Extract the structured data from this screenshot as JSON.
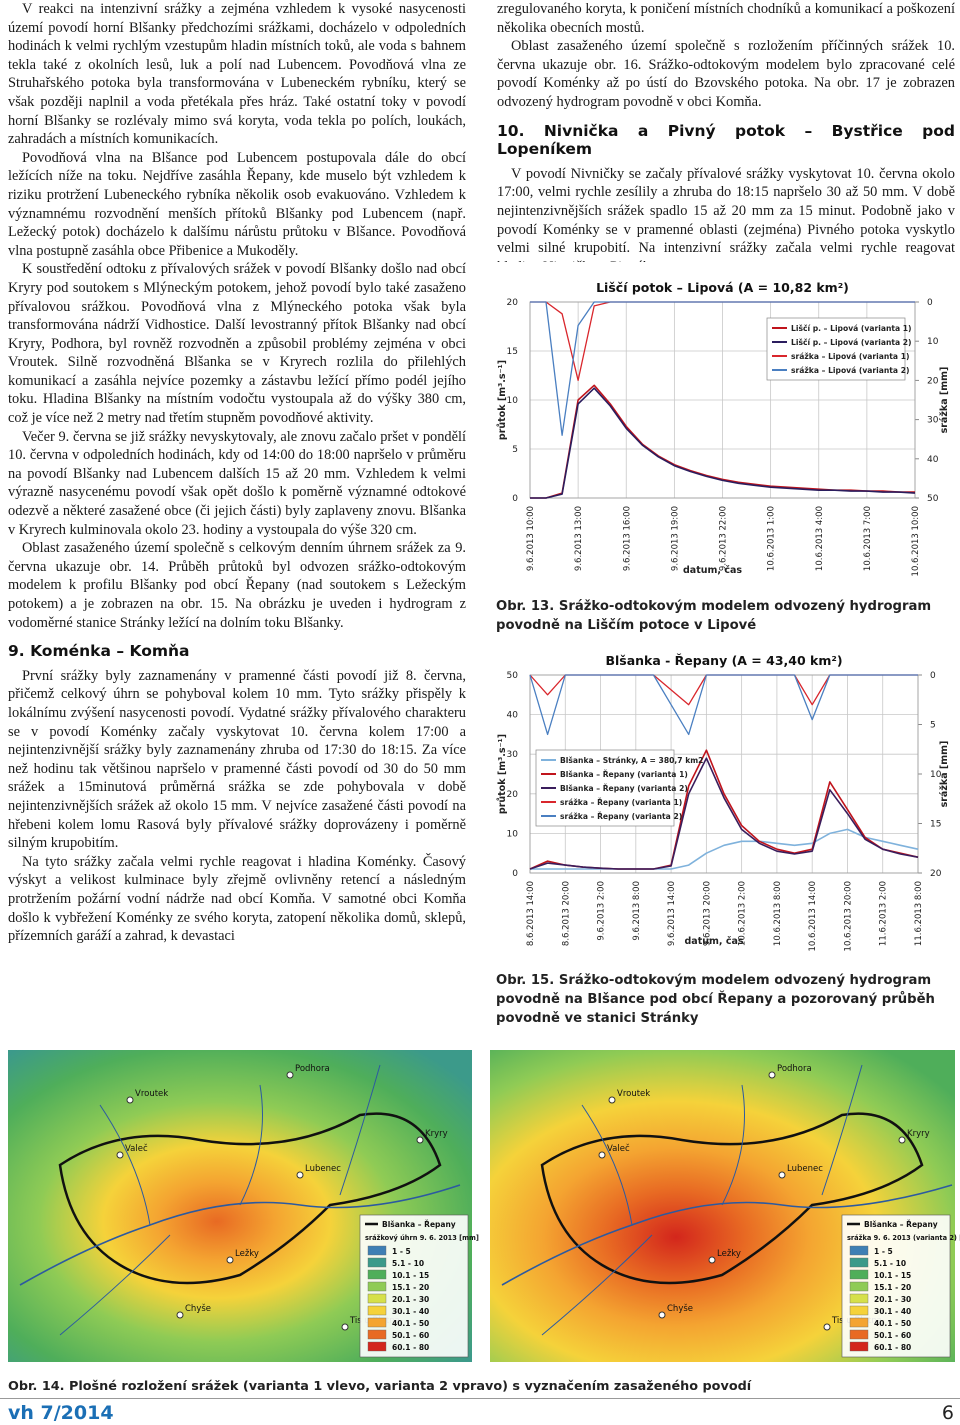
{
  "left_column": {
    "paragraphs_1": [
      "V reakci na intenzivní srážky a zejména vzhledem k vysoké nasycenosti území povodí horní Blšanky předchozími srážkami, docházelo v odpoledních hodinách k velmi rychlým vzestupům hladin místních toků, ale voda s bahnem tekla také z okolních lesů, luk a polí nad Lubencem. Povodňová vlna ze Struhařského potoka byla transformována v Lubeneckém rybníku, který se však později naplnil a voda přetékala přes hráz. Také ostatní toky v povodí horní Blšanky se rozlévaly mimo svá koryta, voda tekla po polích, loukách, zahradách a místních komunikacích.",
      "Povodňová vlna na Blšance pod Lubencem postupovala dále do obcí ležících níže na toku. Nejdříve zasáhla Řepany, kde muselo být vzhledem k riziku protržení Lubeneckého rybníka několik osob evakuováno. Vzhledem k významnému rozvodnění menších přítoků Blšanky pod Lubencem (např. Ležecký potok) docházelo k dalšímu nárůstu průtoku v Blšance. Povodňová vlna postupně zasáhla obce Přibenice a Mukoděly.",
      "K soustředění odtoku z přívalových srážek v povodí Blšanky došlo nad obcí Kryry pod soutokem s Mlýneckým potokem, jehož povodí bylo také zasaženo přívalovou srážkou. Povodňová vlna z Mlýneckého potoka však byla transformována nádrží Vidhostice. Další levostranný přítok Blšanky nad obcí Kryry, Podhora, byl rovněž rozvodněn a způsobil problémy zejména v obci Vroutek. Silně rozvodněná Blšanka se v Kryrech rozlila do přilehlých komunikací a zasáhla nejvíce pozemky a zástavbu ležící přímo podél jejího toku. Hladina Blšanky na místním vodočtu vystoupala až do výšky 380 cm, což je více než 2 metry nad třetím stupněm povodňové aktivity.",
      "Večer 9. června se již srážky nevyskytovaly, ale znovu začalo pršet v pondělí 10. června v odpoledních hodinách, kdy od 14:00 do 18:00 napršelo v průměru na povodí Blšanky nad Lubencem dalších 15 až 20 mm. Vzhledem k velmi výrazně nasycenému povodí však opět došlo k poměrně významné odtokové odezvě a některé zasažené obce (či jejich části) byly zaplaveny znovu. Blšanka v Kryrech kulminovala okolo 23. hodiny a vystoupala do výše 320 cm.",
      "Oblast zasaženého území společně s celkovým denním úhrnem srážek za 9. června ukazuje obr. 14. Průběh průtoků byl odvozen srážko-odtokovým modelem k profilu Blšanky pod obcí Řepany (nad soutokem s Ležeckým potokem) a je zobrazen na obr. 15. Na obrázku je uveden i hydrogram z vodoměrné stanice Stránky ležící na dolním toku Blšanky."
    ],
    "heading": "9. Koménka – Komňa",
    "paragraphs_2": [
      "První srážky byly zaznamenány v pramenné části povodí již 8. června, přičemž celkový úhrn se pohyboval kolem 10 mm. Tyto srážky přispěly k lokálnímu zvýšení nasycenosti povodí. Vydatné srážky přívalového charakteru se v povodí Koménky začaly vyskytovat 10. června kolem 17:00 a nejintenzivnější srážky byly zaznamenány zhruba od 17:30 do 18:15. Za více než hodinu tak většinou napršelo v pramenné části povodí od 30 do 50 mm srážek a 15minutová průměrná srážka se zde pohybovala v době nejintenzivnějších srážek až okolo 15 mm. V nejvíce zasažené části povodí na hřebeni kolem lomu Rasová byly přívalové srážky doprovázeny i poměrně silným krupobitím.",
      "Na tyto srážky začala velmi rychle reagovat i hladina Koménky. Časový výskyt a velikost kulminace byly zřejmě ovlivněny retencí a následným protržením požární vodní nádrže nad obcí Komňa. V samotné obci Komňa došlo k vybřežení Koménky ze svého koryta, zatopení několika domů, sklepů, přízemních garáží a zahrad, k devastaci"
    ]
  },
  "right_column": {
    "paragraphs_1": [
      "zregulovaného koryta, k poničení místních chodníků a komunikací a poškození několika obecních mostů.",
      "Oblast zasaženého území společně s rozložením příčinných srážek 10. června ukazuje obr. 16. Srážko-odtokovým modelem bylo zpracované celé povodí Koménky až po ústí do Bzovského potoka. Na obr. 17 je zobrazen odvozený hydrogram povodně v obci Komňa."
    ],
    "heading": "10. Nivnička a Pivný potok – Bystřice pod Lopeníkem",
    "paragraphs_2": [
      "V povodí Nivničky se začaly přívalové srážky vyskytovat 10. června okolo 17:00, velmi rychle zesílily a zhruba do 18:15 napršelo 30 až 50 mm. V době nejintenzivnějších srážek spadlo 15 až 20 mm za 15 minut. Podobně jako v povodí Koménky se v pramenné oblasti (zejména) Pivného potoka vyskytlo velmi silné krupobití. Na intenzivní srážky začala velmi rychle reagovat hladina Nivničky a Pivného"
    ]
  },
  "figure_13": {
    "caption": "Obr. 13. Srážko-odtokovým modelem odvozený hydrogram povodně na Liščím potoce v Lipové"
  },
  "figure_15": {
    "caption": "Obr. 15. Srážko-odtokovým modelem odvozený hydrogram povodně na Blšance pod obcí Řepany a pozorovaný průběh povodně ve stanici Stránky"
  },
  "figure_14": {
    "caption": "Obr. 14. Plošné rozložení srážek (varianta 1 vlevo, varianta 2 vpravo) s vyznačením zasaženého povodí",
    "maps": [
      {
        "places": [
          "Vroutek",
          "Podhora",
          "Valeč",
          "Kryry",
          "Lubenec",
          "Ležky",
          "Chyše",
          "Tis u Blatna"
        ],
        "legend_basin": "Blšanka – Řepany",
        "legend_title": "srážkový úhrn 9. 6. 2013 [mm]"
      },
      {
        "places": [
          "Vroutek",
          "Podhora",
          "Valeč",
          "Kryry",
          "Lubenec",
          "Ležky",
          "Chyše",
          "Tis u Blatna"
        ],
        "legend_basin": "Blšanka – Řepany",
        "legend_title": "srážka 9. 6. 2013 (varianta 2) [mm]"
      }
    ],
    "classes": [
      {
        "label": "1 - 5",
        "color": "#3f7fb4"
      },
      {
        "label": "5.1 - 10",
        "color": "#3c9a8a"
      },
      {
        "label": "10.1 - 15",
        "color": "#4fae5a"
      },
      {
        "label": "15.1 - 20",
        "color": "#8fcb55"
      },
      {
        "label": "20.1 - 30",
        "color": "#d6e04a"
      },
      {
        "label": "30.1 - 40",
        "color": "#f5d23a"
      },
      {
        "label": "40.1 - 50",
        "color": "#f4a431"
      },
      {
        "label": "50.1 - 60",
        "color": "#e86a23"
      },
      {
        "label": "60.1 - 80",
        "color": "#d3261c"
      }
    ]
  },
  "footer": {
    "journal": "vh 7/2014",
    "page": 6
  },
  "chart_data": [
    {
      "type": "line",
      "title": "Liščí potok – Lipová (A = 10,82 km²)",
      "y_label": "průtok [m³.s⁻¹]",
      "y2_label": "srážka [mm]",
      "x_label": "datum, čas",
      "categories": [
        "9.6.2013 10:00",
        null,
        null,
        "9.6.2013 13:00",
        null,
        null,
        "9.6.2013 16:00",
        null,
        null,
        "9.6.2013 19:00",
        null,
        null,
        "9.6.2013 22:00",
        null,
        null,
        "10.6.2013 1:00",
        null,
        null,
        "10.6.2013 4:00",
        null,
        null,
        "10.6.2013 7:00",
        null,
        null,
        "10.6.2013 10:00"
      ],
      "ylim": [
        0,
        20
      ],
      "yticks": [
        0,
        5,
        10,
        15,
        20
      ],
      "y2lim": [
        0,
        50
      ],
      "y2ticks": [
        0,
        10,
        20,
        30,
        40,
        50
      ],
      "y2_reversed": true,
      "grid": true,
      "legend": "top-right",
      "series": [
        {
          "name": "Liščí p. – Lipová (varianta 1)",
          "color": "#c0141c",
          "values": [
            0,
            0,
            0.5,
            10,
            11.5,
            9.6,
            7.3,
            5.5,
            4.3,
            3.4,
            2.8,
            2.3,
            1.9,
            1.6,
            1.4,
            1.2,
            1.1,
            1,
            0.9,
            0.8,
            0.8,
            0.7,
            0.7,
            0.6,
            0.6
          ]
        },
        {
          "name": "Liščí p. – Lipová (varianta 2)",
          "color": "#2b1d5e",
          "values": [
            0,
            0,
            0.4,
            9.6,
            11.2,
            9.4,
            7.1,
            5.4,
            4.2,
            3.3,
            2.7,
            2.2,
            1.8,
            1.5,
            1.3,
            1.1,
            1,
            0.9,
            0.8,
            0.8,
            0.7,
            0.7,
            0.6,
            0.6,
            0.5
          ]
        },
        {
          "name": "srážka – Lipová (varianta 1)",
          "color": "#d9262c",
          "axis": "y2",
          "values": [
            0,
            0,
            3,
            20,
            1,
            0,
            0,
            0,
            0,
            0,
            0,
            0,
            0,
            0,
            0,
            0,
            0,
            0,
            0,
            0,
            0,
            0,
            0,
            0,
            0
          ]
        },
        {
          "name": "srážka – Lipová (varianta 2)",
          "color": "#4a7fc1",
          "axis": "y2",
          "values": [
            0,
            0,
            34,
            6,
            0,
            0,
            0,
            0,
            0,
            0,
            0,
            0,
            0,
            0,
            0,
            0,
            0,
            0,
            0,
            0,
            0,
            0,
            0,
            0,
            0
          ]
        }
      ]
    },
    {
      "type": "line",
      "title": "Blšanka - Řepany (A = 43,40 km²)",
      "y_label": "průtok [m³.s⁻¹]",
      "y2_label": "srážka [mm]",
      "x_label": "datum, čas",
      "categories": [
        "8.6.2013 14:00",
        null,
        "8.6.2013 20:00",
        null,
        "9.6.2013 2:00",
        null,
        "9.6.2013 8:00",
        null,
        "9.6.2013 14:00",
        null,
        "9.6.2013 20:00",
        null,
        "10.6.2013 2:00",
        null,
        "10.6.2013 8:00",
        null,
        "10.6.2013 14:00",
        null,
        "10.6.2013 20:00",
        null,
        "11.6.2013 2:00",
        null,
        "11.6.2013 8:00"
      ],
      "ylim": [
        0,
        50
      ],
      "yticks": [
        0,
        10,
        20,
        30,
        40,
        50
      ],
      "y2lim": [
        0,
        20
      ],
      "y2ticks": [
        0,
        5,
        10,
        15,
        20
      ],
      "y2_reversed": true,
      "grid": true,
      "legend": "center-left",
      "series": [
        {
          "name": "Blšanka – Stránky, A = 380,7 km2",
          "color": "#7fb2dc",
          "values": [
            1,
            1,
            1,
            1,
            1,
            1,
            1,
            1,
            1,
            2,
            5,
            7,
            8,
            8,
            7.5,
            7,
            7.5,
            10,
            11,
            9,
            8,
            7,
            6
          ]
        },
        {
          "name": "Blšanka – Řepany (varianta 1)",
          "color": "#c0141c",
          "values": [
            1,
            3,
            2,
            1.5,
            1.2,
            1,
            1,
            1,
            2,
            22,
            31,
            20,
            12,
            8,
            6,
            5,
            6,
            23,
            16,
            9,
            6,
            5,
            4
          ]
        },
        {
          "name": "Blšanka – Řepany (varianta 2)",
          "color": "#3a1d5c",
          "values": [
            1,
            2.5,
            2,
            1.5,
            1.2,
            1,
            1,
            1,
            1.8,
            20,
            29,
            19,
            11,
            7.5,
            5.5,
            4.8,
            5.5,
            21,
            15,
            8.5,
            6,
            4.8,
            4
          ]
        },
        {
          "name": "srážka – Řepany (varianta 1)",
          "color": "#d9262c",
          "axis": "y2",
          "values": [
            0,
            2,
            0,
            0,
            0,
            0,
            0,
            0,
            1.5,
            3,
            0,
            0,
            0,
            0,
            0,
            0,
            3,
            0,
            0,
            0,
            0,
            0,
            0
          ]
        },
        {
          "name": "srážka – Řepany (varianta 2)",
          "color": "#4a7fc1",
          "axis": "y2",
          "values": [
            0,
            6,
            0,
            0,
            0,
            0,
            0,
            0,
            3,
            6,
            0,
            0,
            0,
            0,
            0,
            0,
            4.5,
            0,
            0,
            0,
            0,
            0,
            0
          ]
        }
      ]
    }
  ]
}
